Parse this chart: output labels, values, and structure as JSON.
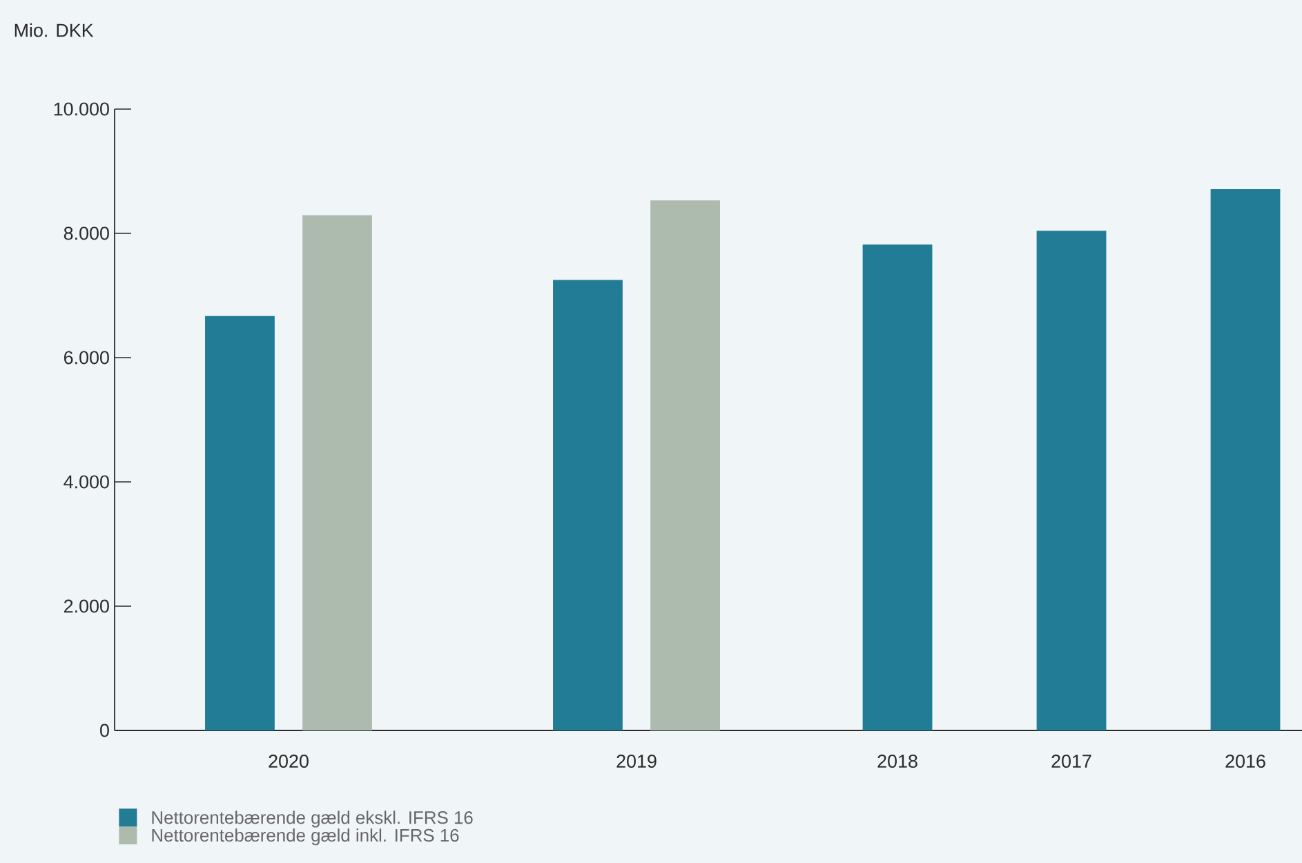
{
  "chart_data": {
    "type": "bar",
    "ylabel": "Mio. DKK",
    "categories": [
      "2020",
      "2019",
      "2018",
      "2017",
      "2016"
    ],
    "series": [
      {
        "name": "Nettorentebærende gæld ekskl. IFRS 16",
        "color": "#237c96",
        "values": [
          6670,
          7250,
          7820,
          8040,
          8710
        ]
      },
      {
        "name": "Nettorentebærende gæld inkl. IFRS 16",
        "color": "#adbbae",
        "values": [
          8290,
          8530,
          null,
          null,
          null
        ]
      }
    ],
    "ylim": [
      0,
      10000
    ],
    "yticks": [
      {
        "value": 0,
        "label": "0"
      },
      {
        "value": 2000,
        "label": "2.000"
      },
      {
        "value": 4000,
        "label": "4.000"
      },
      {
        "value": 6000,
        "label": "6.000"
      },
      {
        "value": 8000,
        "label": "8.000"
      },
      {
        "value": 10000,
        "label": "10.000"
      }
    ],
    "legend": "bottom left"
  }
}
